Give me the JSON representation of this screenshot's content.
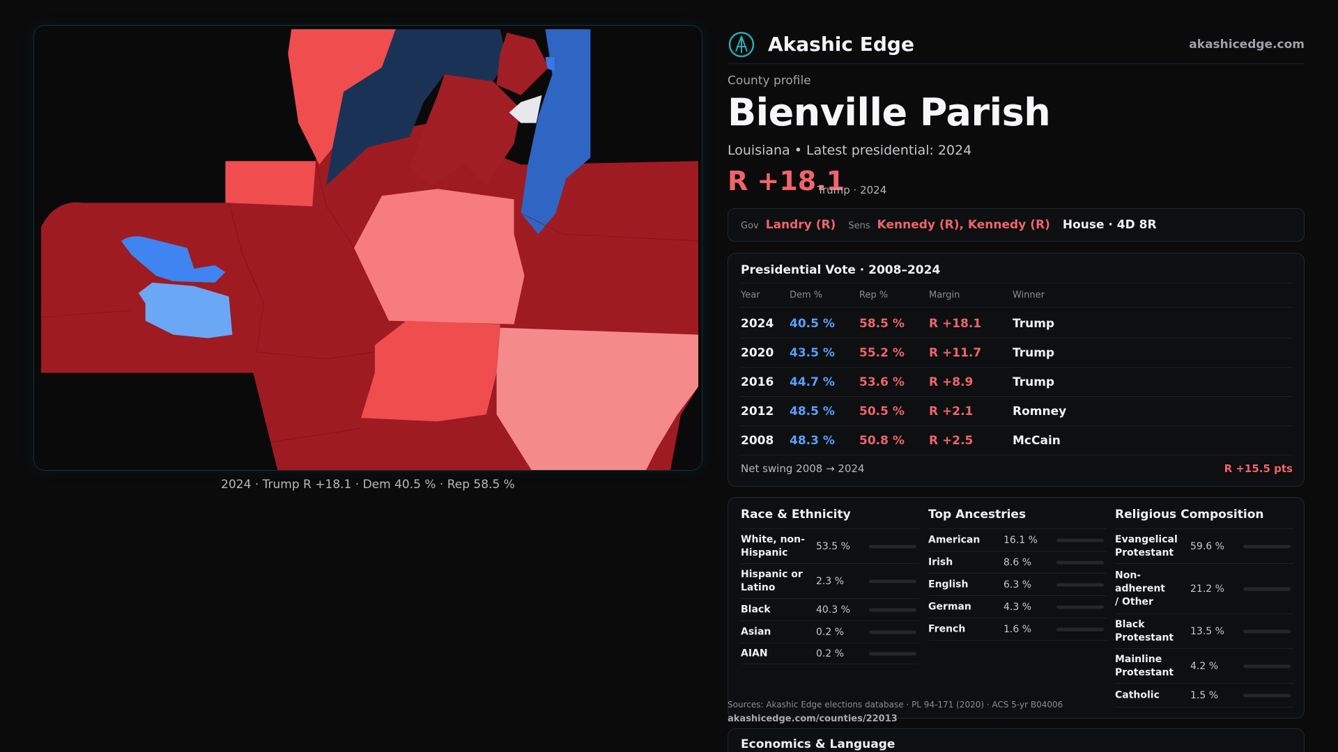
{
  "brand": {
    "name": "Akashic Edge",
    "site": "akashicedge.com"
  },
  "profile": {
    "eyebrow": "County profile",
    "title": "Bienville Parish",
    "subtitle": "Louisiana • Latest presidential: 2024",
    "margin": "R +18.1",
    "margin_note": "Trump · 2024"
  },
  "officials": {
    "gov_label": "Gov",
    "gov": "Landry (R)",
    "sens_label": "Sens",
    "sens": "Kennedy (R), Kennedy (R)",
    "house": "House · 4D 8R"
  },
  "presidential": {
    "title": "Presidential Vote · 2008–2024",
    "headers": {
      "year": "Year",
      "dem": "Dem %",
      "rep": "Rep %",
      "margin": "Margin",
      "winner": "Winner"
    },
    "rows": [
      {
        "year": "2024",
        "dem": "40.5 %",
        "rep": "58.5 %",
        "margin": "R +18.1",
        "winner": "Trump"
      },
      {
        "year": "2020",
        "dem": "43.5 %",
        "rep": "55.2 %",
        "margin": "R +11.7",
        "winner": "Trump"
      },
      {
        "year": "2016",
        "dem": "44.7 %",
        "rep": "53.6 %",
        "margin": "R +8.9",
        "winner": "Trump"
      },
      {
        "year": "2012",
        "dem": "48.5 %",
        "rep": "50.5 %",
        "margin": "R +2.1",
        "winner": "Romney"
      },
      {
        "year": "2008",
        "dem": "48.3 %",
        "rep": "50.8 %",
        "margin": "R +2.5",
        "winner": "McCain"
      }
    ],
    "swing_label": "Net swing 2008 → 2024",
    "swing_value": "R +15.5 pts"
  },
  "map": {
    "caption": "2024 · Trump R +18.1 · Dem 40.5 % · Rep 58.5 %"
  },
  "race": {
    "title": "Race & Ethnicity",
    "rows": [
      {
        "label": "White, non-Hispanic",
        "pct": "53.5 %",
        "value": 53.5,
        "color": "#8a96a8"
      },
      {
        "label": "Hispanic or Latino",
        "pct": "2.3 %",
        "value": 2.3,
        "color": "#e0645a"
      },
      {
        "label": "Black",
        "pct": "40.3 %",
        "value": 40.3,
        "color": "#8b6ee0"
      },
      {
        "label": "Asian",
        "pct": "0.2 %",
        "value": 0.2,
        "color": "#8a96a8"
      },
      {
        "label": "AIAN",
        "pct": "0.2 %",
        "value": 0.2,
        "color": "#8a96a8"
      }
    ]
  },
  "ancestry": {
    "title": "Top Ancestries",
    "rows": [
      {
        "label": "American",
        "pct": "16.1 %",
        "value": 16.1,
        "color": "#8a96a8"
      },
      {
        "label": "Irish",
        "pct": "8.6 %",
        "value": 8.6,
        "color": "#8a96a8"
      },
      {
        "label": "English",
        "pct": "6.3 %",
        "value": 6.3,
        "color": "#8a96a8"
      },
      {
        "label": "German",
        "pct": "4.3 %",
        "value": 4.3,
        "color": "#8a96a8"
      },
      {
        "label": "French",
        "pct": "1.6 %",
        "value": 1.6,
        "color": "#8a96a8"
      }
    ]
  },
  "religion": {
    "title": "Religious Composition",
    "rows": [
      {
        "label": "Evangelical Protestant",
        "pct": "59.6 %",
        "value": 59.6,
        "color": "#e0646a"
      },
      {
        "label": "Non-adherent / Other",
        "pct": "21.2 %",
        "value": 21.2,
        "color": "#6e737a"
      },
      {
        "label": "Black Protestant",
        "pct": "13.5 %",
        "value": 13.5,
        "color": "#8b6ee0"
      },
      {
        "label": "Mainline Protestant",
        "pct": "4.2 %",
        "value": 4.2,
        "color": "#5aa0ff"
      },
      {
        "label": "Catholic",
        "pct": "1.5 %",
        "value": 1.5,
        "color": "#e0b050"
      }
    ]
  },
  "sources": {
    "text": "Sources: Akashic Edge elections database · PL 94-171 (2020) · ACS 5-yr B04006",
    "url": "akashicedge.com/counties/22013"
  },
  "economics": {
    "title": "Economics & Language"
  },
  "colors": {
    "dem": "#5aa0ff",
    "rep": "#f0646a",
    "accent": "#1e8c96"
  }
}
